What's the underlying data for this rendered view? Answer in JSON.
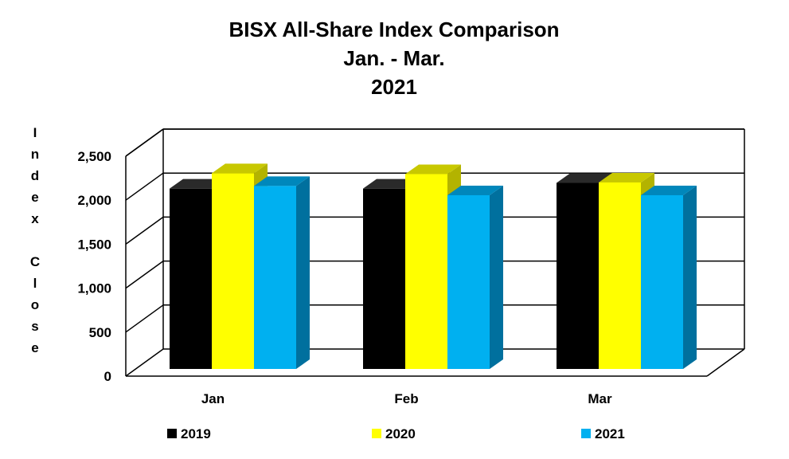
{
  "chart_data": {
    "type": "bar",
    "title_lines": [
      "BISX All-Share Index Comparison",
      "Jan. - Mar.",
      "2021"
    ],
    "ylabel": "Index Close",
    "xlabel": "",
    "categories": [
      "Jan",
      "Feb",
      "Mar"
    ],
    "ylim": [
      0,
      2500
    ],
    "yticks": [
      0,
      500,
      1000,
      1500,
      2000,
      2500
    ],
    "ytick_labels": [
      "0",
      "500",
      "1,000",
      "1,500",
      "2,000",
      "2,500"
    ],
    "series": [
      {
        "name": "2019",
        "values": [
          2050,
          2050,
          2115
        ],
        "color": "#000000",
        "top_color": "#2a2a2a",
        "side_color": "#000000"
      },
      {
        "name": "2020",
        "values": [
          2225,
          2215,
          2120
        ],
        "color": "#ffff00",
        "top_color": "#c8c800",
        "side_color": "#b3b300"
      },
      {
        "name": "2021",
        "values": [
          2080,
          1975,
          1975
        ],
        "color": "#00b0f0",
        "top_color": "#0087bb",
        "side_color": "#00709e"
      }
    ],
    "grid": true,
    "style": "3d-clustered-column",
    "legend_position": "bottom"
  }
}
